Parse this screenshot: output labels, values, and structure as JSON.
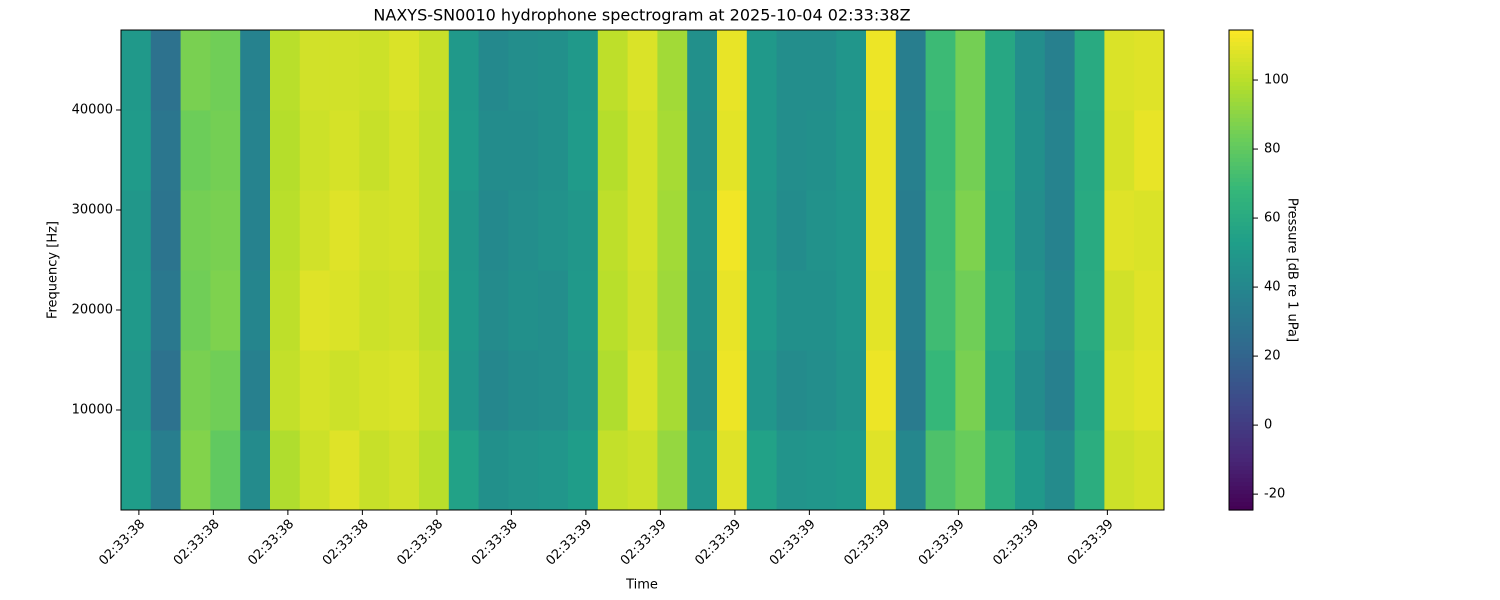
{
  "chart_data": {
    "type": "heatmap",
    "title": "NAXYS-SN0010 hydrophone spectrogram at 2025-10-04 02:33:38Z",
    "x_label": "Time",
    "y_label": "Frequency [Hz]",
    "colorbar_label": "Pressure [dB re 1 uPa]",
    "colormap": "viridis",
    "x": [
      38.396,
      38.436,
      38.476,
      38.516,
      38.556,
      38.596,
      38.636,
      38.676,
      38.716,
      38.756,
      38.796,
      38.836,
      38.876,
      38.916,
      38.956,
      38.996,
      39.036,
      39.076,
      39.116,
      39.156,
      39.196,
      39.236,
      39.276,
      39.316,
      39.356,
      39.396,
      39.436,
      39.476,
      39.516,
      39.556,
      39.596,
      39.636,
      39.676,
      39.716,
      39.756
    ],
    "y": [
      4000,
      12000,
      20000,
      28000,
      36000,
      44000
    ],
    "z": [
      [
        52,
        35,
        88,
        80,
        42,
        98,
        104,
        108,
        103,
        105,
        100,
        55,
        45,
        47,
        48,
        52,
        102,
        104,
        92,
        48,
        108,
        55,
        47,
        48,
        50,
        108,
        40,
        75,
        82,
        62,
        50,
        42,
        62,
        104,
        106
      ],
      [
        48,
        28,
        86,
        84,
        36,
        102,
        106,
        104,
        106,
        107,
        103,
        48,
        40,
        43,
        44,
        48,
        98,
        107,
        96,
        43,
        111,
        48,
        42,
        44,
        47,
        111,
        33,
        68,
        86,
        56,
        43,
        36,
        58,
        107,
        109
      ],
      [
        50,
        31,
        84,
        87,
        39,
        101,
        108,
        107,
        104,
        105,
        101,
        50,
        42,
        45,
        44,
        50,
        100,
        105,
        94,
        45,
        110,
        51,
        45,
        45,
        48,
        109,
        35,
        71,
        84,
        59,
        46,
        39,
        61,
        105,
        108
      ],
      [
        49,
        29,
        85,
        86,
        37,
        100,
        105,
        108,
        105,
        106,
        102,
        49,
        41,
        44,
        46,
        49,
        101,
        106,
        95,
        46,
        112,
        49,
        43,
        46,
        48,
        110,
        34,
        70,
        87,
        57,
        44,
        37,
        60,
        108,
        107
      ],
      [
        51,
        30,
        83,
        85,
        38,
        99,
        104,
        106,
        103,
        106,
        102,
        51,
        43,
        43,
        45,
        51,
        99,
        106,
        96,
        44,
        109,
        50,
        44,
        45,
        49,
        110,
        36,
        69,
        85,
        58,
        45,
        38,
        59,
        106,
        110
      ],
      [
        50,
        28,
        86,
        84,
        37,
        100,
        105,
        105,
        104,
        107,
        103,
        50,
        41,
        44,
        45,
        50,
        101,
        107,
        95,
        45,
        110,
        50,
        44,
        44,
        48,
        111,
        35,
        70,
        85,
        58,
        44,
        36,
        60,
        107,
        108
      ]
    ],
    "xlim": [
      38.376,
      39.776
    ],
    "xticks": [
      {
        "value": 38.4,
        "label": "02:33:38"
      },
      {
        "value": 38.5,
        "label": "02:33:38"
      },
      {
        "value": 38.6,
        "label": "02:33:38"
      },
      {
        "value": 38.7,
        "label": "02:33:38"
      },
      {
        "value": 38.8,
        "label": "02:33:38"
      },
      {
        "value": 38.9,
        "label": "02:33:38"
      },
      {
        "value": 39.0,
        "label": "02:33:39"
      },
      {
        "value": 39.1,
        "label": "02:33:39"
      },
      {
        "value": 39.2,
        "label": "02:33:39"
      },
      {
        "value": 39.3,
        "label": "02:33:39"
      },
      {
        "value": 39.4,
        "label": "02:33:39"
      },
      {
        "value": 39.5,
        "label": "02:33:39"
      },
      {
        "value": 39.6,
        "label": "02:33:39"
      },
      {
        "value": 39.7,
        "label": "02:33:39"
      }
    ],
    "ylim": [
      0,
      48000
    ],
    "yticks": [
      10000,
      20000,
      30000,
      40000
    ],
    "clim": [
      -24.6,
      114.5
    ],
    "cticks": [
      -20,
      0,
      20,
      40,
      60,
      80,
      100
    ]
  }
}
